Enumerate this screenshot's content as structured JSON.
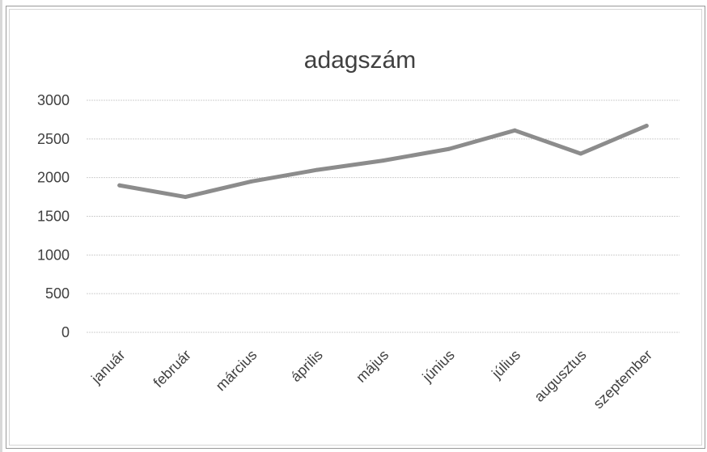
{
  "chart_data": {
    "type": "line",
    "title": "adagszám",
    "xlabel": "",
    "ylabel": "",
    "categories": [
      "január",
      "február",
      "március",
      "április",
      "május",
      "június",
      "július",
      "augusztus",
      "szeptember"
    ],
    "y_ticks": [
      "3000",
      "2500",
      "2000",
      "1500",
      "1000",
      "500",
      "0"
    ],
    "ylim": [
      0,
      3000
    ],
    "grid": true,
    "legend": "none",
    "series": [
      {
        "values": [
          1900,
          1750,
          1950,
          2100,
          2220,
          2370,
          2610,
          2310,
          2670
        ],
        "color": "#8c8c8c"
      }
    ]
  }
}
